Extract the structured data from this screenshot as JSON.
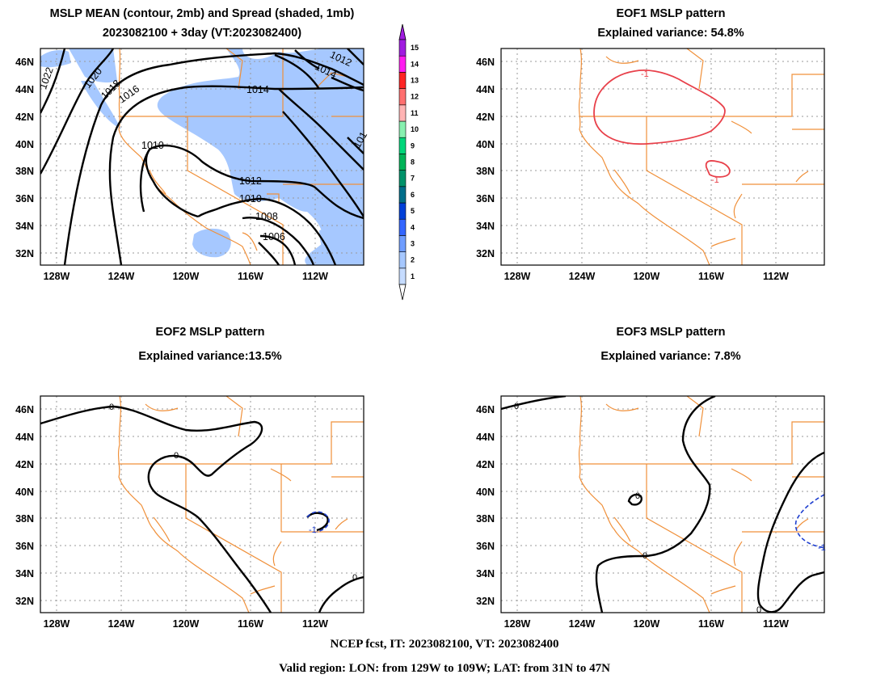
{
  "panels": [
    {
      "title_line1": "MSLP MEAN (contour, 2mb) and Spread (shaded, 1mb)",
      "title_line2": "2023082100 + 3day (VT:2023082400)"
    },
    {
      "title_line1": "EOF1 MSLP pattern",
      "title_line2": "Explained variance: 54.8%"
    },
    {
      "title_line1": "EOF2 MSLP pattern",
      "title_line2": "Explained variance:13.5%"
    },
    {
      "title_line1": "EOF3 MSLP pattern",
      "title_line2": "Explained variance: 7.8%"
    }
  ],
  "footer": {
    "line1": "NCEP fcst, IT: 2023082100, VT: 2023082400",
    "line2": "Valid region: LON: from 129W to 109W; LAT: from 31N to 47N"
  },
  "chart_data": [
    {
      "type": "contour",
      "panel": "mslp-mean-spread",
      "x_ticks": [
        "128W",
        "124W",
        "120W",
        "116W",
        "112W"
      ],
      "y_ticks": [
        "46N",
        "44N",
        "42N",
        "40N",
        "38N",
        "36N",
        "34N",
        "32N"
      ],
      "xlim": [
        -129,
        -109
      ],
      "ylim": [
        31,
        47
      ],
      "grid": true,
      "contour_labels": [
        "1022",
        "1020",
        "1018",
        "1016",
        "1014",
        "1012",
        "1014",
        "1010",
        "1012",
        "1010",
        "1008",
        "1006",
        "101"
      ],
      "shading": {
        "name": "Spread",
        "color": "#a6c8ff"
      }
    },
    {
      "type": "contour",
      "panel": "eof1",
      "x_ticks": [
        "128W",
        "124W",
        "120W",
        "116W",
        "112W"
      ],
      "y_ticks": [
        "46N",
        "44N",
        "42N",
        "40N",
        "38N",
        "36N",
        "34N",
        "32N"
      ],
      "xlim": [
        -129,
        -109
      ],
      "ylim": [
        31,
        47
      ],
      "grid": true,
      "contour_labels": [
        "-1",
        "-1"
      ],
      "color": "#e8404a"
    },
    {
      "type": "contour",
      "panel": "eof2",
      "x_ticks": [
        "128W",
        "124W",
        "120W",
        "116W",
        "112W"
      ],
      "y_ticks": [
        "46N",
        "44N",
        "42N",
        "40N",
        "38N",
        "36N",
        "34N",
        "32N"
      ],
      "xlim": [
        -129,
        -109
      ],
      "ylim": [
        31,
        47
      ],
      "grid": true,
      "contour_labels": [
        "0",
        "0",
        "0",
        "-1"
      ]
    },
    {
      "type": "contour",
      "panel": "eof3",
      "x_ticks": [
        "128W",
        "124W",
        "120W",
        "116W",
        "112W"
      ],
      "y_ticks": [
        "46N",
        "44N",
        "42N",
        "40N",
        "38N",
        "36N",
        "34N",
        "32N"
      ],
      "xlim": [
        -129,
        -109
      ],
      "ylim": [
        31,
        47
      ],
      "grid": true,
      "contour_labels": [
        "0",
        "0",
        "0",
        "0",
        "-1"
      ]
    }
  ],
  "colorbar": {
    "labels": [
      "1",
      "2",
      "3",
      "4",
      "5",
      "6",
      "7",
      "8",
      "9",
      "10",
      "11",
      "12",
      "13",
      "14",
      "15"
    ],
    "colors": [
      "#c6dcff",
      "#a6c8ff",
      "#6f9dff",
      "#3366ff",
      "#0040d8",
      "#006e8a",
      "#00926a",
      "#00b458",
      "#00d67a",
      "#88f0b0",
      "#ffb4b4",
      "#ff7070",
      "#ff2424",
      "#ff1cf0",
      "#a01ce0"
    ]
  }
}
